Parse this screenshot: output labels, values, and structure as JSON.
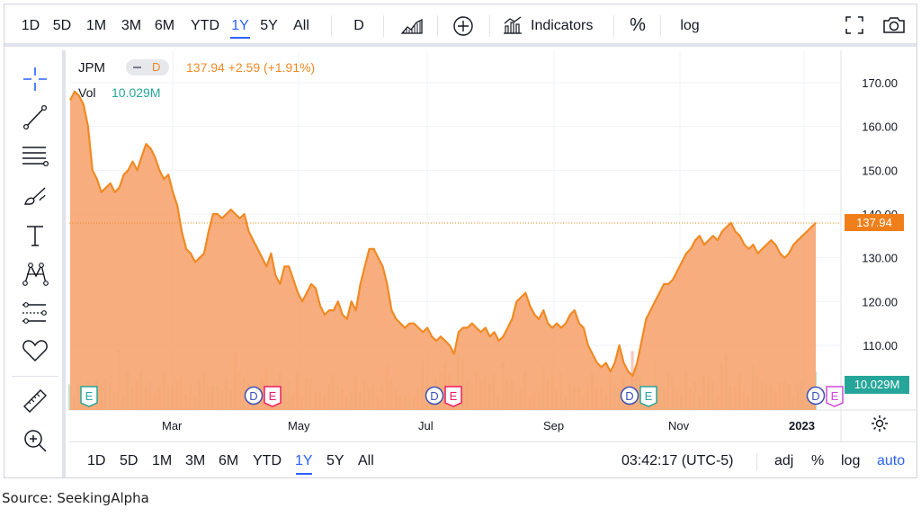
{
  "top_toolbar": {
    "ranges": [
      "1D",
      "5D",
      "1M",
      "3M",
      "6M",
      "YTD",
      "1Y",
      "5Y",
      "All"
    ],
    "active_range": "1Y",
    "interval": "D",
    "indicators_label": "Indicators",
    "percent_label": "%",
    "log_label": "log"
  },
  "legend": {
    "symbol": "JPM",
    "interval_badge": "D",
    "price_change": "137.94 +2.59 (+1.91%)",
    "vol_label": "Vol",
    "vol_value": "10.029M"
  },
  "price_axis": {
    "ticks": [
      "170.00",
      "160.00",
      "150.00",
      "140.00",
      "130.00",
      "120.00",
      "110.00"
    ],
    "last_price": "137.94",
    "last_volume": "10.029M"
  },
  "time_axis": {
    "labels": [
      "Mar",
      "May",
      "Jul",
      "Sep",
      "Nov",
      "2023"
    ]
  },
  "event_markers": [
    {
      "letters": [
        "E"
      ]
    },
    {
      "letters": [
        "D",
        "E"
      ]
    },
    {
      "letters": [
        "D",
        "E"
      ]
    },
    {
      "letters": [
        "D",
        "E"
      ]
    },
    {
      "letters": [
        "D",
        "E"
      ]
    }
  ],
  "bottom_toolbar": {
    "ranges": [
      "1D",
      "5D",
      "1M",
      "3M",
      "6M",
      "YTD",
      "1Y",
      "5Y",
      "All"
    ],
    "active_range": "1Y",
    "clock": "03:42:17 (UTC-5)",
    "adj_label": "adj",
    "percent_label": "%",
    "log_label": "log",
    "auto_label": "auto"
  },
  "source_note": "Source: SeekingAlpha",
  "colors": {
    "price_line": "#f08a24",
    "area_fill": "#f6a672",
    "last_price_badge": "#f07f1a",
    "volume_badge": "#26a69a",
    "active_tab": "#2962ff",
    "dividend_marker": "#3f51b5",
    "earnings_marker": "#e91e63",
    "earnings_marker_green": "#26a69a"
  },
  "chart_data": {
    "type": "area",
    "ylim": [
      103,
      173
    ],
    "yticks": [
      110,
      120,
      130,
      140,
      150,
      160,
      170
    ],
    "x_labels": [
      "Mar",
      "May",
      "Jul",
      "Sep",
      "Nov",
      "2023"
    ],
    "last_price": 137.94,
    "series": [
      {
        "values": [
          166,
          168,
          167,
          165,
          160,
          150,
          148,
          145,
          146,
          147,
          145,
          146,
          149,
          150,
          152,
          150,
          153,
          156,
          155,
          153,
          150,
          148,
          149,
          145,
          142,
          136,
          132,
          131,
          129,
          130,
          131,
          136,
          140,
          140,
          139,
          140,
          141,
          140,
          139,
          140,
          136,
          134,
          132,
          130,
          128,
          131,
          126,
          124,
          128,
          128,
          125,
          122,
          120,
          122,
          124,
          123,
          119,
          117,
          118,
          118,
          120,
          117,
          116,
          120,
          118,
          124,
          128,
          132,
          132,
          130,
          128,
          124,
          118,
          116,
          115,
          114,
          115,
          115,
          114,
          113,
          114,
          112,
          111,
          112,
          111,
          110,
          108,
          113,
          114,
          114,
          115,
          114,
          113,
          114,
          112,
          113,
          111,
          112,
          114,
          116,
          120,
          121,
          122,
          119,
          117,
          116,
          118,
          115,
          114,
          115,
          114,
          115,
          117,
          118,
          115,
          114,
          110,
          108,
          106,
          105,
          106,
          104,
          106,
          110,
          106,
          104,
          103,
          106,
          111,
          116,
          118,
          120,
          122,
          124,
          124,
          125,
          127,
          129,
          131,
          132,
          134,
          135,
          133,
          134,
          135,
          134,
          136,
          137,
          138,
          136,
          135,
          133,
          132,
          133,
          131,
          132,
          133,
          134,
          133,
          131,
          130,
          131,
          133,
          134,
          135,
          136,
          137,
          138
        ]
      }
    ]
  }
}
